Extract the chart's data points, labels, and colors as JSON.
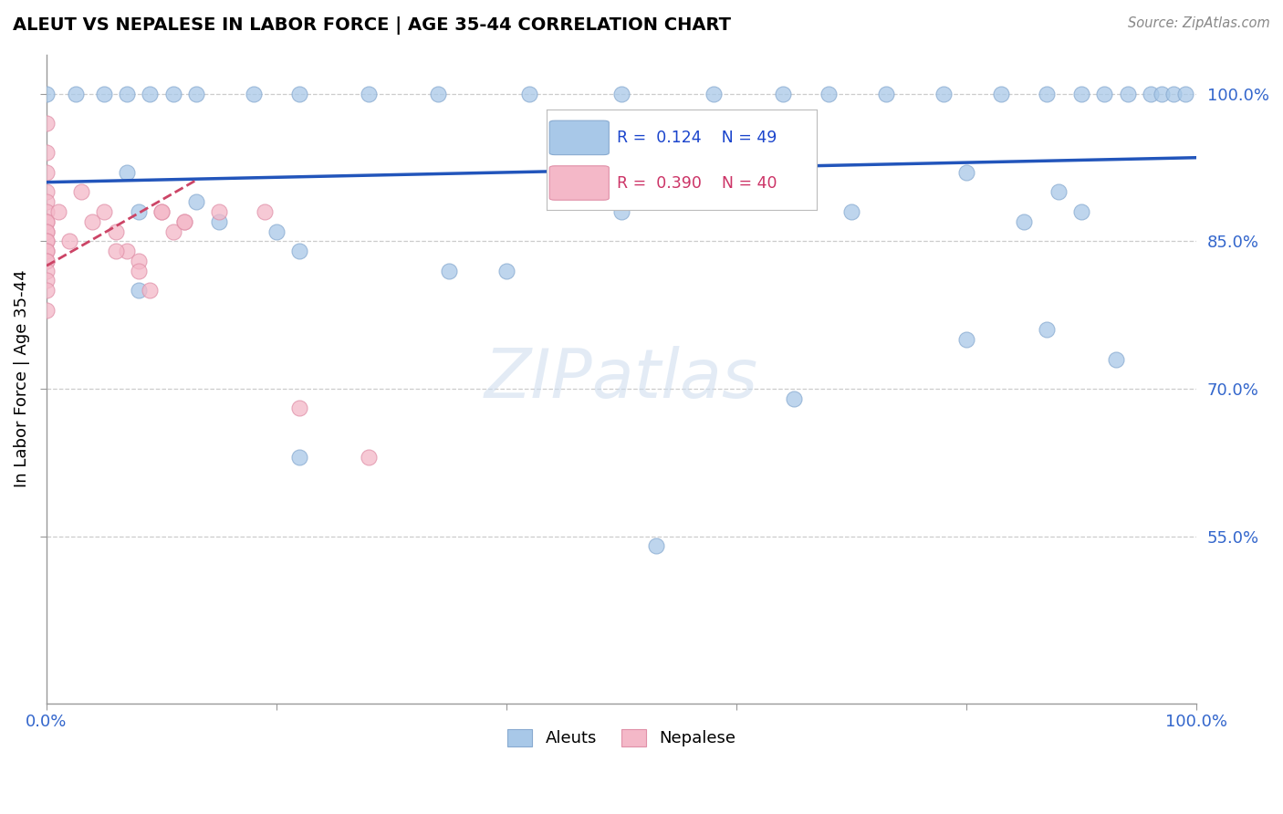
{
  "title": "ALEUT VS NEPALESE IN LABOR FORCE | AGE 35-44 CORRELATION CHART",
  "source": "Source: ZipAtlas.com",
  "ylabel": "In Labor Force | Age 35-44",
  "watermark": "ZIPatlas",
  "xlim": [
    0.0,
    1.0
  ],
  "ylim": [
    0.38,
    1.04
  ],
  "ytick_positions": [
    1.0,
    0.85,
    0.7,
    0.55
  ],
  "ytick_labels": [
    "100.0%",
    "85.0%",
    "70.0%",
    "55.0%"
  ],
  "legend_blue_r": "0.124",
  "legend_blue_n": "49",
  "legend_pink_r": "0.390",
  "legend_pink_n": "40",
  "aleuts_color": "#a8c8e8",
  "nepalese_color": "#f4b8c8",
  "blue_line_color": "#2255bb",
  "pink_line_color": "#cc4466",
  "grid_color": "#cccccc",
  "blue_line_x0": 0.0,
  "blue_line_y0": 0.91,
  "blue_line_x1": 1.0,
  "blue_line_y1": 0.935,
  "pink_line_x0": 0.0,
  "pink_line_y0": 0.825,
  "pink_line_x1": 0.13,
  "pink_line_y1": 0.912,
  "aleuts_x": [
    0.0,
    0.025,
    0.05,
    0.07,
    0.09,
    0.11,
    0.13,
    0.18,
    0.22,
    0.28,
    0.34,
    0.42,
    0.5,
    0.58,
    0.64,
    0.68,
    0.73,
    0.78,
    0.83,
    0.87,
    0.9,
    0.92,
    0.94,
    0.96,
    0.97,
    0.98,
    0.99,
    0.07,
    0.13,
    0.2,
    0.08,
    0.15,
    0.22,
    0.35,
    0.5,
    0.6,
    0.7,
    0.8,
    0.85,
    0.88,
    0.9,
    0.08,
    0.22,
    0.4,
    0.53,
    0.65,
    0.8,
    0.87,
    0.93
  ],
  "aleuts_y": [
    1.0,
    1.0,
    1.0,
    1.0,
    1.0,
    1.0,
    1.0,
    1.0,
    1.0,
    1.0,
    1.0,
    1.0,
    1.0,
    1.0,
    1.0,
    1.0,
    1.0,
    1.0,
    1.0,
    1.0,
    1.0,
    1.0,
    1.0,
    1.0,
    1.0,
    1.0,
    1.0,
    0.92,
    0.89,
    0.86,
    0.88,
    0.87,
    0.84,
    0.82,
    0.88,
    0.91,
    0.88,
    0.92,
    0.87,
    0.9,
    0.88,
    0.8,
    0.63,
    0.82,
    0.54,
    0.69,
    0.75,
    0.76,
    0.73
  ],
  "nepalese_x": [
    0.0,
    0.0,
    0.0,
    0.0,
    0.0,
    0.0,
    0.0,
    0.0,
    0.0,
    0.0,
    0.0,
    0.0,
    0.0,
    0.0,
    0.0,
    0.0,
    0.0,
    0.0,
    0.0,
    0.0,
    0.01,
    0.02,
    0.03,
    0.04,
    0.05,
    0.06,
    0.07,
    0.08,
    0.09,
    0.1,
    0.11,
    0.12,
    0.06,
    0.08,
    0.1,
    0.12,
    0.15,
    0.19,
    0.22,
    0.28
  ],
  "nepalese_y": [
    0.97,
    0.94,
    0.92,
    0.9,
    0.89,
    0.88,
    0.87,
    0.87,
    0.86,
    0.86,
    0.85,
    0.85,
    0.84,
    0.84,
    0.83,
    0.83,
    0.82,
    0.81,
    0.8,
    0.78,
    0.88,
    0.85,
    0.9,
    0.87,
    0.88,
    0.86,
    0.84,
    0.83,
    0.8,
    0.88,
    0.86,
    0.87,
    0.84,
    0.82,
    0.88,
    0.87,
    0.88,
    0.88,
    0.68,
    0.63
  ]
}
